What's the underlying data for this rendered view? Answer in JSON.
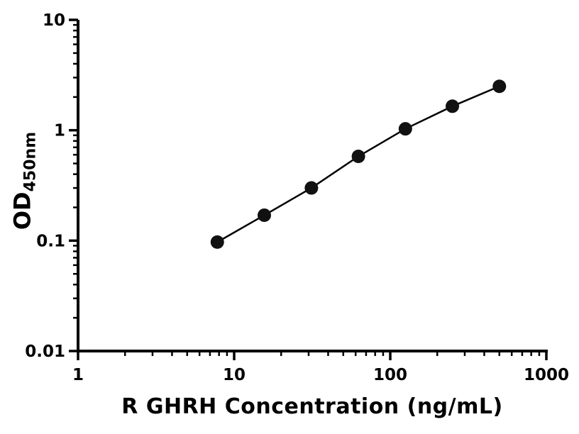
{
  "chart_data": {
    "type": "line",
    "x": [
      7.8,
      15.6,
      31.25,
      62.5,
      125,
      250,
      500
    ],
    "y": [
      0.097,
      0.17,
      0.3,
      0.58,
      1.03,
      1.65,
      2.5
    ],
    "title": "",
    "xlabel": "R GHRH Concentration (ng/mL)",
    "ylabel_main": "OD",
    "ylabel_sub": "450nm",
    "xscale": "log",
    "yscale": "log",
    "xlim": [
      1,
      1000
    ],
    "ylim": [
      0.01,
      10
    ],
    "x_ticks": [
      1,
      10,
      100,
      1000
    ],
    "x_tick_labels": [
      "1",
      "10",
      "100",
      "1000"
    ],
    "y_ticks": [
      0.01,
      0.1,
      1,
      10
    ],
    "y_tick_labels": [
      "0.01",
      "0.1",
      "1",
      "10"
    ],
    "grid": false,
    "legend": "none",
    "line_color": "#000000",
    "marker_color": "#111111",
    "background_color": "#ffffff"
  }
}
